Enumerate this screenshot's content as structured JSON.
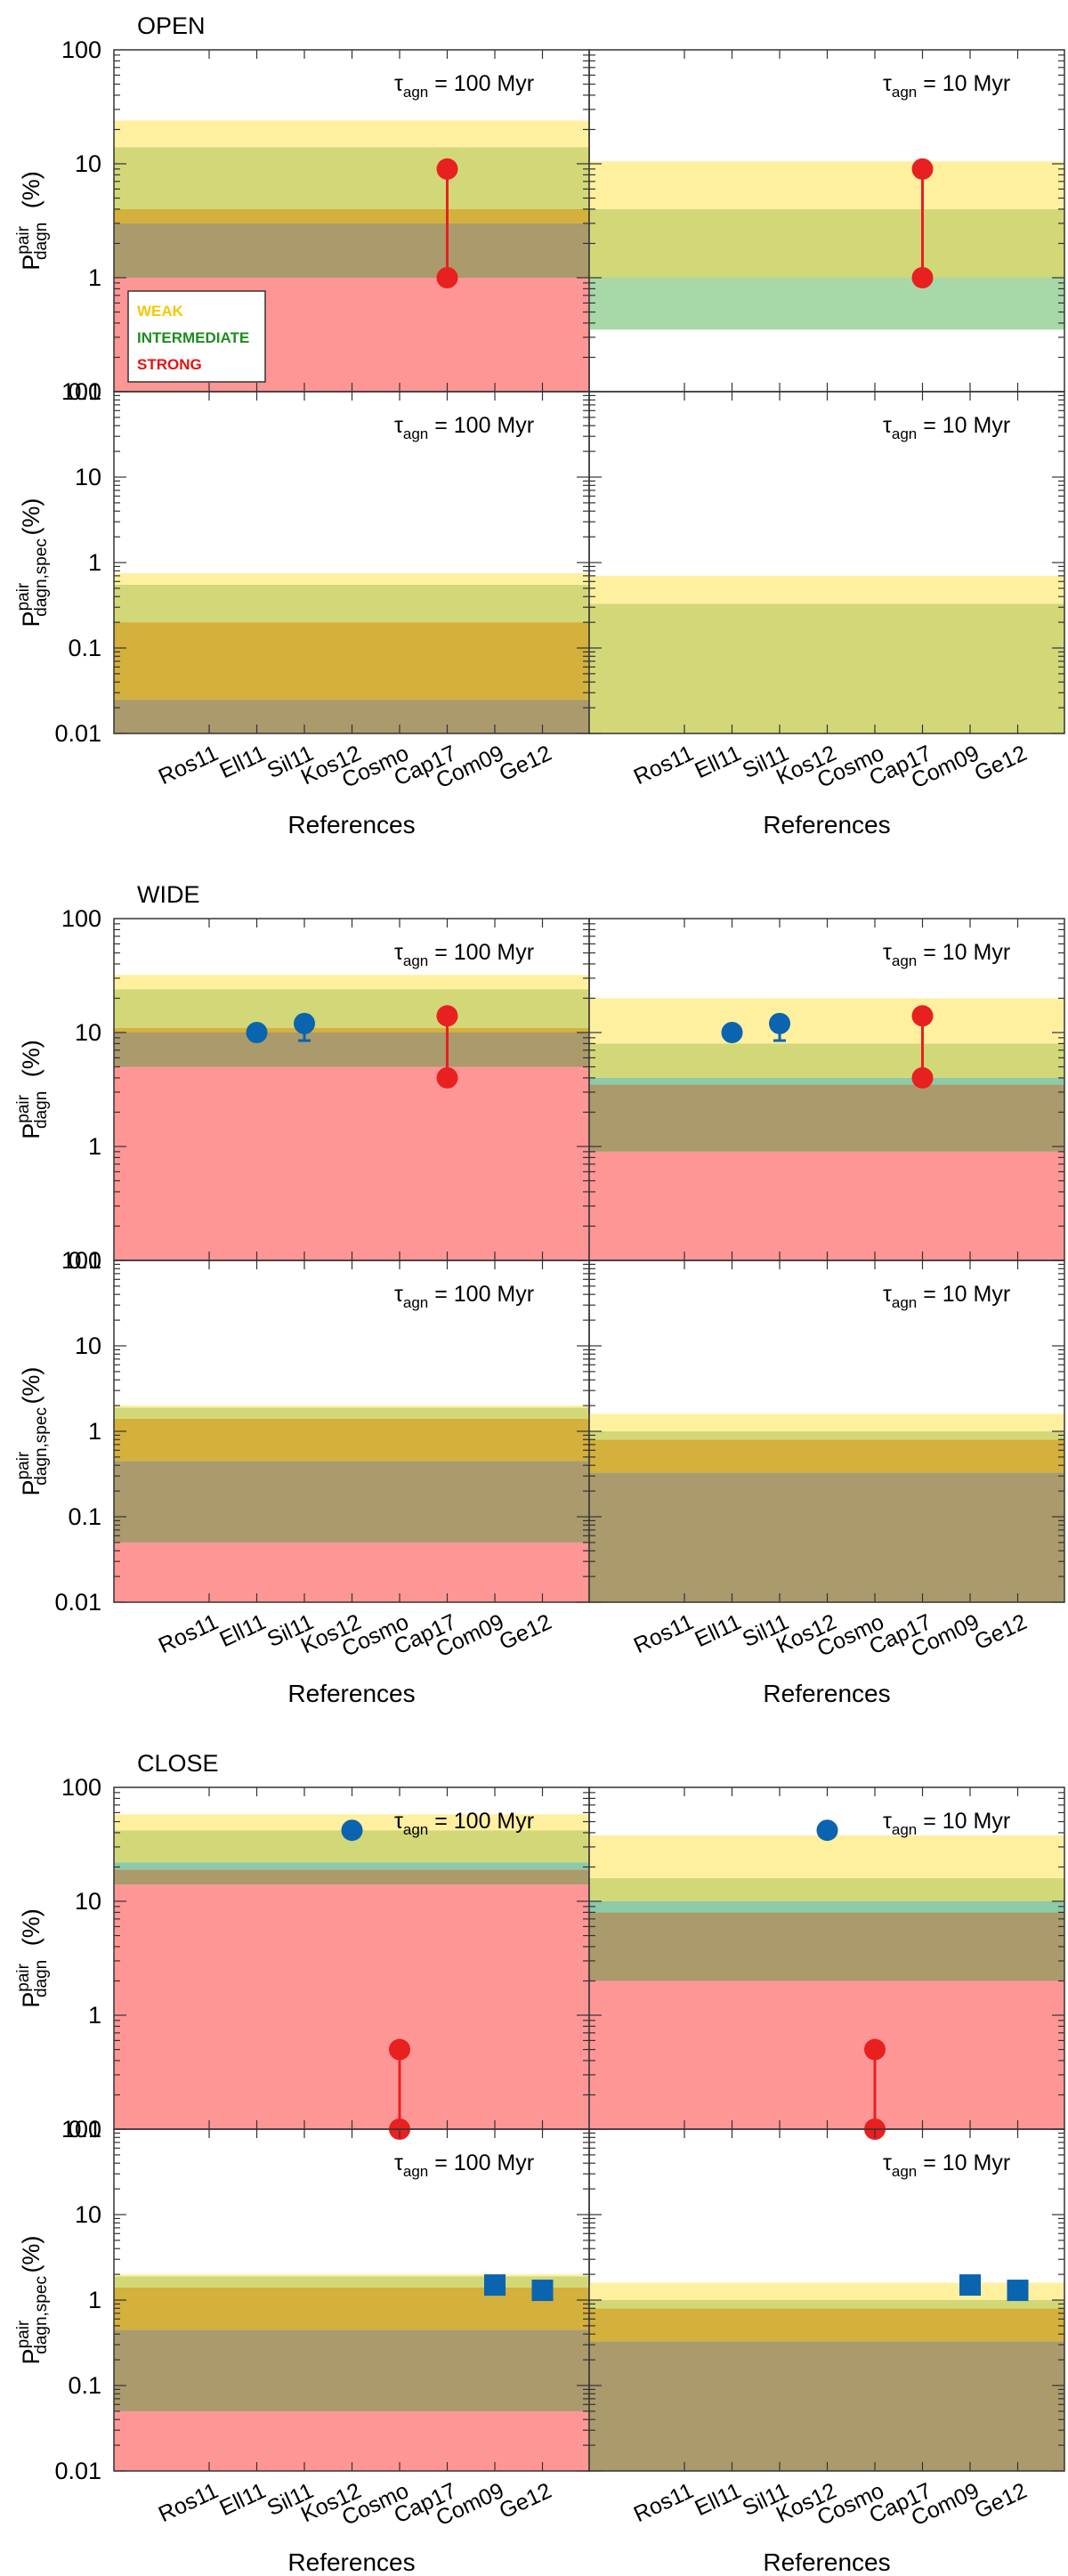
{
  "chart_data": {
    "type": "bar",
    "y_scale": "log",
    "xlabel": "References",
    "references": [
      "Ros11",
      "Ell11",
      "Sil11",
      "Kos12",
      "Cosmo",
      "Cap17",
      "Com09",
      "Ge12"
    ],
    "ylabel_top": "(%)",
    "ylabel_bottom": "(%)",
    "ylabel_top_base": "P",
    "ylabel_top_sup": "pair",
    "ylabel_top_sub": "dagn",
    "ylabel_bottom_base": "P",
    "ylabel_bottom_sup": "pair",
    "ylabel_bottom_sub": "dagn,spec",
    "ylim_top": [
      0.1,
      100
    ],
    "ylim_bottom": [
      0.01,
      100
    ],
    "ticks_top": [
      "100",
      "10",
      "1",
      "0.1"
    ],
    "ticks_bottom": [
      "100",
      "10",
      "1",
      "0.1",
      "0.01"
    ],
    "tau_prefix": "τ",
    "tau_sub": "agn",
    "tau_left": "= 100 Myr",
    "tau_right": "= 10 Myr",
    "legend": [
      {
        "label": "WEAK",
        "color": "#f5c800"
      },
      {
        "label": "INTERMEDIATE",
        "color": "#1e8c1e"
      },
      {
        "label": "STRONG",
        "color": "#e81010"
      }
    ],
    "band_colors": {
      "weak": "#fff0a0",
      "intermediate": "#d2d878",
      "overlap": "#d4b03c",
      "strong": "#ff9696",
      "blend": "#aa9a6c",
      "green_only": "#a8d8a8",
      "teal_line": "#8ccaa8"
    },
    "groups": [
      {
        "title": "OPEN",
        "panels": [
          {
            "position": "top-left",
            "tau": "100 Myr",
            "bands": [
              {
                "from": 0.1,
                "to": 1.0,
                "color": "strong"
              },
              {
                "from": 1.0,
                "to": 3.0,
                "color": "blend"
              },
              {
                "from": 3.0,
                "to": 4.0,
                "color": "overlap"
              },
              {
                "from": 4.0,
                "to": 14.0,
                "color": "intermediate"
              },
              {
                "from": 14.0,
                "to": 24.0,
                "color": "weak"
              }
            ],
            "points": [
              {
                "ref": "Cap17",
                "low": 1.0,
                "high": 9.0,
                "marker": "circle",
                "color": "red"
              }
            ]
          },
          {
            "position": "top-right",
            "tau": "10 Myr",
            "bands": [
              {
                "from": 0.35,
                "to": 1.0,
                "color": "green_only"
              },
              {
                "from": 1.0,
                "to": 4.0,
                "color": "intermediate"
              },
              {
                "from": 4.0,
                "to": 10.5,
                "color": "weak"
              }
            ],
            "points": [
              {
                "ref": "Cap17",
                "low": 1.0,
                "high": 9.0,
                "marker": "circle",
                "color": "red"
              }
            ]
          },
          {
            "position": "bottom-left",
            "tau": "100 Myr",
            "bands": [
              {
                "from": 0.01,
                "to": 0.025,
                "color": "blend"
              },
              {
                "from": 0.025,
                "to": 0.2,
                "color": "overlap"
              },
              {
                "from": 0.2,
                "to": 0.55,
                "color": "intermediate"
              },
              {
                "from": 0.55,
                "to": 0.75,
                "color": "weak"
              }
            ],
            "points": []
          },
          {
            "position": "bottom-right",
            "tau": "10 Myr",
            "bands": [
              {
                "from": 0.01,
                "to": 0.33,
                "color": "intermediate"
              },
              {
                "from": 0.33,
                "to": 0.7,
                "color": "weak"
              }
            ],
            "points": []
          }
        ]
      },
      {
        "title": "WIDE",
        "panels": [
          {
            "position": "top-left",
            "tau": "100 Myr",
            "bands": [
              {
                "from": 0.1,
                "to": 5.0,
                "color": "strong"
              },
              {
                "from": 5.0,
                "to": 10.0,
                "color": "blend"
              },
              {
                "from": 10.0,
                "to": 11.0,
                "color": "overlap"
              },
              {
                "from": 11.0,
                "to": 24.0,
                "color": "intermediate"
              },
              {
                "from": 24.0,
                "to": 32.0,
                "color": "weak"
              }
            ],
            "points": [
              {
                "ref": "Ell11",
                "value": 10.0,
                "marker": "circle",
                "color": "blue"
              },
              {
                "ref": "Sil11",
                "value": 12.0,
                "err_low": 8.5,
                "err_high": 14.0,
                "marker": "circle",
                "color": "blue"
              },
              {
                "ref": "Cap17",
                "low": 4.0,
                "high": 14.0,
                "marker": "circle",
                "color": "red"
              }
            ]
          },
          {
            "position": "top-right",
            "tau": "10 Myr",
            "bands": [
              {
                "from": 0.1,
                "to": 0.9,
                "color": "strong"
              },
              {
                "from": 0.9,
                "to": 3.5,
                "color": "blend"
              },
              {
                "from": 3.5,
                "to": 4.0,
                "color": "teal_line"
              },
              {
                "from": 4.0,
                "to": 8.0,
                "color": "intermediate"
              },
              {
                "from": 8.0,
                "to": 20.0,
                "color": "weak"
              }
            ],
            "points": [
              {
                "ref": "Ell11",
                "value": 10.0,
                "marker": "circle",
                "color": "blue"
              },
              {
                "ref": "Sil11",
                "value": 12.0,
                "err_low": 8.5,
                "err_high": 14.0,
                "marker": "circle",
                "color": "blue"
              },
              {
                "ref": "Cap17",
                "low": 4.0,
                "high": 14.0,
                "marker": "circle",
                "color": "red"
              }
            ]
          },
          {
            "position": "bottom-left",
            "tau": "100 Myr",
            "bands": [
              {
                "from": 0.01,
                "to": 0.05,
                "color": "strong"
              },
              {
                "from": 0.05,
                "to": 0.45,
                "color": "blend"
              },
              {
                "from": 0.45,
                "to": 1.4,
                "color": "overlap"
              },
              {
                "from": 1.4,
                "to": 1.9,
                "color": "intermediate"
              },
              {
                "from": 1.9,
                "to": 2.0,
                "color": "weak"
              }
            ],
            "points": []
          },
          {
            "position": "bottom-right",
            "tau": "10 Myr",
            "bands": [
              {
                "from": 0.01,
                "to": 0.33,
                "color": "blend"
              },
              {
                "from": 0.33,
                "to": 0.8,
                "color": "overlap"
              },
              {
                "from": 0.8,
                "to": 1.0,
                "color": "intermediate"
              },
              {
                "from": 1.0,
                "to": 1.6,
                "color": "weak"
              }
            ],
            "points": []
          }
        ]
      },
      {
        "title": "CLOSE",
        "panels": [
          {
            "position": "top-left",
            "tau": "100 Myr",
            "bands": [
              {
                "from": 0.1,
                "to": 14.0,
                "color": "strong"
              },
              {
                "from": 14.0,
                "to": 19.0,
                "color": "blend"
              },
              {
                "from": 19.0,
                "to": 22.0,
                "color": "teal_line"
              },
              {
                "from": 22.0,
                "to": 42.0,
                "color": "intermediate"
              },
              {
                "from": 42.0,
                "to": 58.0,
                "color": "weak"
              }
            ],
            "points": [
              {
                "ref": "Kos12",
                "value": 42.0,
                "marker": "circle",
                "color": "blue"
              },
              {
                "ref": "Cosmo",
                "low": 0.1,
                "high": 0.5,
                "marker": "circle",
                "color": "red"
              }
            ]
          },
          {
            "position": "top-right",
            "tau": "10 Myr",
            "bands": [
              {
                "from": 0.1,
                "to": 2.0,
                "color": "strong"
              },
              {
                "from": 2.0,
                "to": 8.0,
                "color": "blend"
              },
              {
                "from": 8.0,
                "to": 10.0,
                "color": "teal_line"
              },
              {
                "from": 10.0,
                "to": 16.0,
                "color": "intermediate"
              },
              {
                "from": 16.0,
                "to": 38.0,
                "color": "weak"
              }
            ],
            "points": [
              {
                "ref": "Kos12",
                "value": 42.0,
                "marker": "circle",
                "color": "blue"
              },
              {
                "ref": "Cosmo",
                "low": 0.1,
                "high": 0.5,
                "marker": "circle",
                "color": "red"
              }
            ]
          },
          {
            "position": "bottom-left",
            "tau": "100 Myr",
            "bands": [
              {
                "from": 0.01,
                "to": 0.05,
                "color": "strong"
              },
              {
                "from": 0.05,
                "to": 0.45,
                "color": "blend"
              },
              {
                "from": 0.45,
                "to": 1.4,
                "color": "overlap"
              },
              {
                "from": 1.4,
                "to": 1.9,
                "color": "intermediate"
              },
              {
                "from": 1.9,
                "to": 2.0,
                "color": "weak"
              }
            ],
            "points": [
              {
                "ref": "Com09",
                "value": 1.5,
                "marker": "square",
                "color": "blue"
              },
              {
                "ref": "Ge12",
                "value": 1.3,
                "marker": "square",
                "color": "blue"
              }
            ]
          },
          {
            "position": "bottom-right",
            "tau": "10 Myr",
            "bands": [
              {
                "from": 0.01,
                "to": 0.33,
                "color": "blend"
              },
              {
                "from": 0.33,
                "to": 0.8,
                "color": "overlap"
              },
              {
                "from": 0.8,
                "to": 1.0,
                "color": "intermediate"
              },
              {
                "from": 1.0,
                "to": 1.6,
                "color": "weak"
              }
            ],
            "points": [
              {
                "ref": "Com09",
                "value": 1.5,
                "marker": "square",
                "color": "blue"
              },
              {
                "ref": "Ge12",
                "value": 1.3,
                "marker": "square",
                "color": "blue"
              }
            ]
          }
        ]
      }
    ],
    "marker_colors": {
      "red": "#e82020",
      "blue": "#0a64b0"
    }
  }
}
